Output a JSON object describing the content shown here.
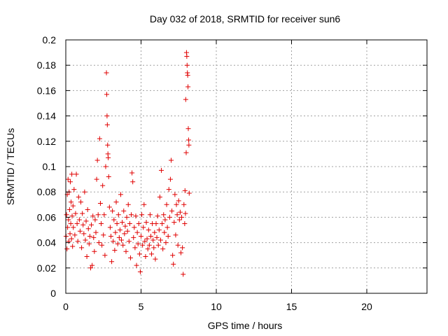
{
  "chart_data": {
    "type": "scatter",
    "title": "Day 032 of 2018, SRMTID for receiver sun6",
    "xlabel": "GPS time / hours",
    "ylabel": "SRMTID / TECUs",
    "xlim": [
      0,
      24
    ],
    "ylim": [
      0,
      0.2
    ],
    "xticks": [
      "0",
      "5",
      "10",
      "15",
      "20"
    ],
    "yticks": [
      "0",
      "0.02",
      "0.04",
      "0.06",
      "0.08",
      "0.1",
      "0.12",
      "0.14",
      "0.16",
      "0.18",
      "0.2"
    ],
    "grid": true,
    "marker": "+",
    "colors": {
      "series": "#e00000",
      "grid": "#a0a0a0",
      "axis": "#000000"
    },
    "series": [
      {
        "values": [
          [
            0.02,
            0.045
          ],
          [
            0.05,
            0.062
          ],
          [
            0.08,
            0.035
          ],
          [
            0.1,
            0.078
          ],
          [
            0.12,
            0.052
          ],
          [
            0.15,
            0.09
          ],
          [
            0.18,
            0.058
          ],
          [
            0.2,
            0.041
          ],
          [
            0.22,
            0.08
          ],
          [
            0.25,
            0.066
          ],
          [
            0.28,
            0.047
          ],
          [
            0.3,
            0.088
          ],
          [
            0.33,
            0.055
          ],
          [
            0.35,
            0.072
          ],
          [
            0.38,
            0.043
          ],
          [
            0.4,
            0.094
          ],
          [
            0.42,
            0.061
          ],
          [
            0.45,
            0.037
          ],
          [
            0.48,
            0.069
          ],
          [
            0.5,
            0.052
          ],
          [
            0.55,
            0.082
          ],
          [
            0.6,
            0.046
          ],
          [
            0.65,
            0.063
          ],
          [
            0.7,
            0.094
          ],
          [
            0.75,
            0.055
          ],
          [
            0.8,
            0.041
          ],
          [
            0.85,
            0.076
          ],
          [
            0.9,
            0.058
          ],
          [
            0.95,
            0.049
          ],
          [
            1.0,
            0.072
          ],
          [
            1.05,
            0.036
          ],
          [
            1.1,
            0.063
          ],
          [
            1.15,
            0.054
          ],
          [
            1.2,
            0.047
          ],
          [
            1.25,
            0.08
          ],
          [
            1.3,
            0.042
          ],
          [
            1.35,
            0.057
          ],
          [
            1.4,
            0.029
          ],
          [
            1.45,
            0.066
          ],
          [
            1.5,
            0.051
          ],
          [
            1.55,
            0.039
          ],
          [
            1.6,
            0.045
          ],
          [
            1.65,
            0.02
          ],
          [
            1.7,
            0.054
          ],
          [
            1.75,
            0.022
          ],
          [
            1.8,
            0.061
          ],
          [
            1.85,
            0.044
          ],
          [
            1.9,
            0.033
          ],
          [
            1.95,
            0.058
          ],
          [
            2.0,
            0.048
          ],
          [
            2.05,
            0.09
          ],
          [
            2.1,
            0.105
          ],
          [
            2.15,
            0.062
          ],
          [
            2.2,
            0.04
          ],
          [
            2.25,
            0.122
          ],
          [
            2.3,
            0.071
          ],
          [
            2.35,
            0.055
          ],
          [
            2.4,
            0.038
          ],
          [
            2.45,
            0.085
          ],
          [
            2.5,
            0.046
          ],
          [
            2.55,
            0.062
          ],
          [
            2.6,
            0.03
          ],
          [
            2.65,
            0.1
          ],
          [
            2.7,
            0.174
          ],
          [
            2.72,
            0.157
          ],
          [
            2.74,
            0.14
          ],
          [
            2.76,
            0.133
          ],
          [
            2.78,
            0.117
          ],
          [
            2.8,
            0.11
          ],
          [
            2.82,
            0.107
          ],
          [
            2.85,
            0.092
          ],
          [
            2.9,
            0.068
          ],
          [
            2.95,
            0.052
          ],
          [
            3.0,
            0.045
          ],
          [
            3.05,
            0.025
          ],
          [
            3.1,
            0.065
          ],
          [
            3.15,
            0.041
          ],
          [
            3.2,
            0.058
          ],
          [
            3.25,
            0.034
          ],
          [
            3.3,
            0.048
          ],
          [
            3.35,
            0.072
          ],
          [
            3.4,
            0.055
          ],
          [
            3.45,
            0.039
          ],
          [
            3.5,
            0.062
          ],
          [
            3.55,
            0.044
          ],
          [
            3.6,
            0.05
          ],
          [
            3.65,
            0.078
          ],
          [
            3.7,
            0.042
          ],
          [
            3.75,
            0.056
          ],
          [
            3.8,
            0.038
          ],
          [
            3.85,
            0.065
          ],
          [
            3.9,
            0.047
          ],
          [
            3.95,
            0.053
          ],
          [
            4.0,
            0.033
          ],
          [
            4.05,
            0.06
          ],
          [
            4.1,
            0.049
          ],
          [
            4.15,
            0.07
          ],
          [
            4.2,
            0.041
          ],
          [
            4.25,
            0.055
          ],
          [
            4.3,
            0.028
          ],
          [
            4.35,
            0.062
          ],
          [
            4.4,
            0.095
          ],
          [
            4.45,
            0.088
          ],
          [
            4.5,
            0.044
          ],
          [
            4.55,
            0.052
          ],
          [
            4.6,
            0.036
          ],
          [
            4.65,
            0.061
          ],
          [
            4.7,
            0.022
          ],
          [
            4.75,
            0.048
          ],
          [
            4.8,
            0.039
          ],
          [
            4.85,
            0.055
          ],
          [
            4.9,
            0.031
          ],
          [
            4.95,
            0.017
          ],
          [
            5.0,
            0.045
          ],
          [
            5.05,
            0.062
          ],
          [
            5.1,
            0.038
          ],
          [
            5.15,
            0.052
          ],
          [
            5.2,
            0.07
          ],
          [
            5.25,
            0.041
          ],
          [
            5.3,
            0.029
          ],
          [
            5.35,
            0.056
          ],
          [
            5.4,
            0.043
          ],
          [
            5.45,
            0.035
          ],
          [
            5.5,
            0.05
          ],
          [
            5.55,
            0.038
          ],
          [
            5.6,
            0.062
          ],
          [
            5.65,
            0.045
          ],
          [
            5.7,
            0.031
          ],
          [
            5.75,
            0.055
          ],
          [
            5.8,
            0.042
          ],
          [
            5.85,
            0.036
          ],
          [
            5.9,
            0.048
          ],
          [
            5.95,
            0.027
          ],
          [
            6.0,
            0.055
          ],
          [
            6.05,
            0.044
          ],
          [
            6.1,
            0.061
          ],
          [
            6.15,
            0.038
          ],
          [
            6.2,
            0.05
          ],
          [
            6.25,
            0.076
          ],
          [
            6.3,
            0.042
          ],
          [
            6.35,
            0.097
          ],
          [
            6.4,
            0.055
          ],
          [
            6.45,
            0.035
          ],
          [
            6.5,
            0.062
          ],
          [
            6.55,
            0.048
          ],
          [
            6.6,
            0.058
          ],
          [
            6.65,
            0.04
          ],
          [
            6.7,
            0.07
          ],
          [
            6.75,
            0.052
          ],
          [
            6.8,
            0.045
          ],
          [
            6.85,
            0.082
          ],
          [
            6.9,
            0.06
          ],
          [
            6.95,
            0.09
          ],
          [
            7.0,
            0.105
          ],
          [
            7.05,
            0.065
          ],
          [
            7.1,
            0.03
          ],
          [
            7.15,
            0.023
          ],
          [
            7.2,
            0.056
          ],
          [
            7.25,
            0.078
          ],
          [
            7.3,
            0.046
          ],
          [
            7.35,
            0.07
          ],
          [
            7.4,
            0.062
          ],
          [
            7.45,
            0.038
          ],
          [
            7.5,
            0.073
          ],
          [
            7.55,
            0.058
          ],
          [
            7.6,
            0.064
          ],
          [
            7.65,
            0.032
          ],
          [
            7.7,
            0.06
          ],
          [
            7.75,
            0.036
          ],
          [
            7.8,
            0.015
          ],
          [
            7.85,
            0.07
          ],
          [
            7.9,
            0.055
          ],
          [
            7.92,
            0.081
          ],
          [
            7.95,
            0.063
          ],
          [
            7.97,
            0.153
          ],
          [
            8.0,
            0.111
          ],
          [
            8.02,
            0.19
          ],
          [
            8.04,
            0.187
          ],
          [
            8.06,
            0.18
          ],
          [
            8.08,
            0.174
          ],
          [
            8.1,
            0.172
          ],
          [
            8.12,
            0.163
          ],
          [
            8.14,
            0.13
          ],
          [
            8.16,
            0.121
          ],
          [
            8.18,
            0.117
          ],
          [
            8.2,
            0.079
          ]
        ]
      }
    ]
  }
}
